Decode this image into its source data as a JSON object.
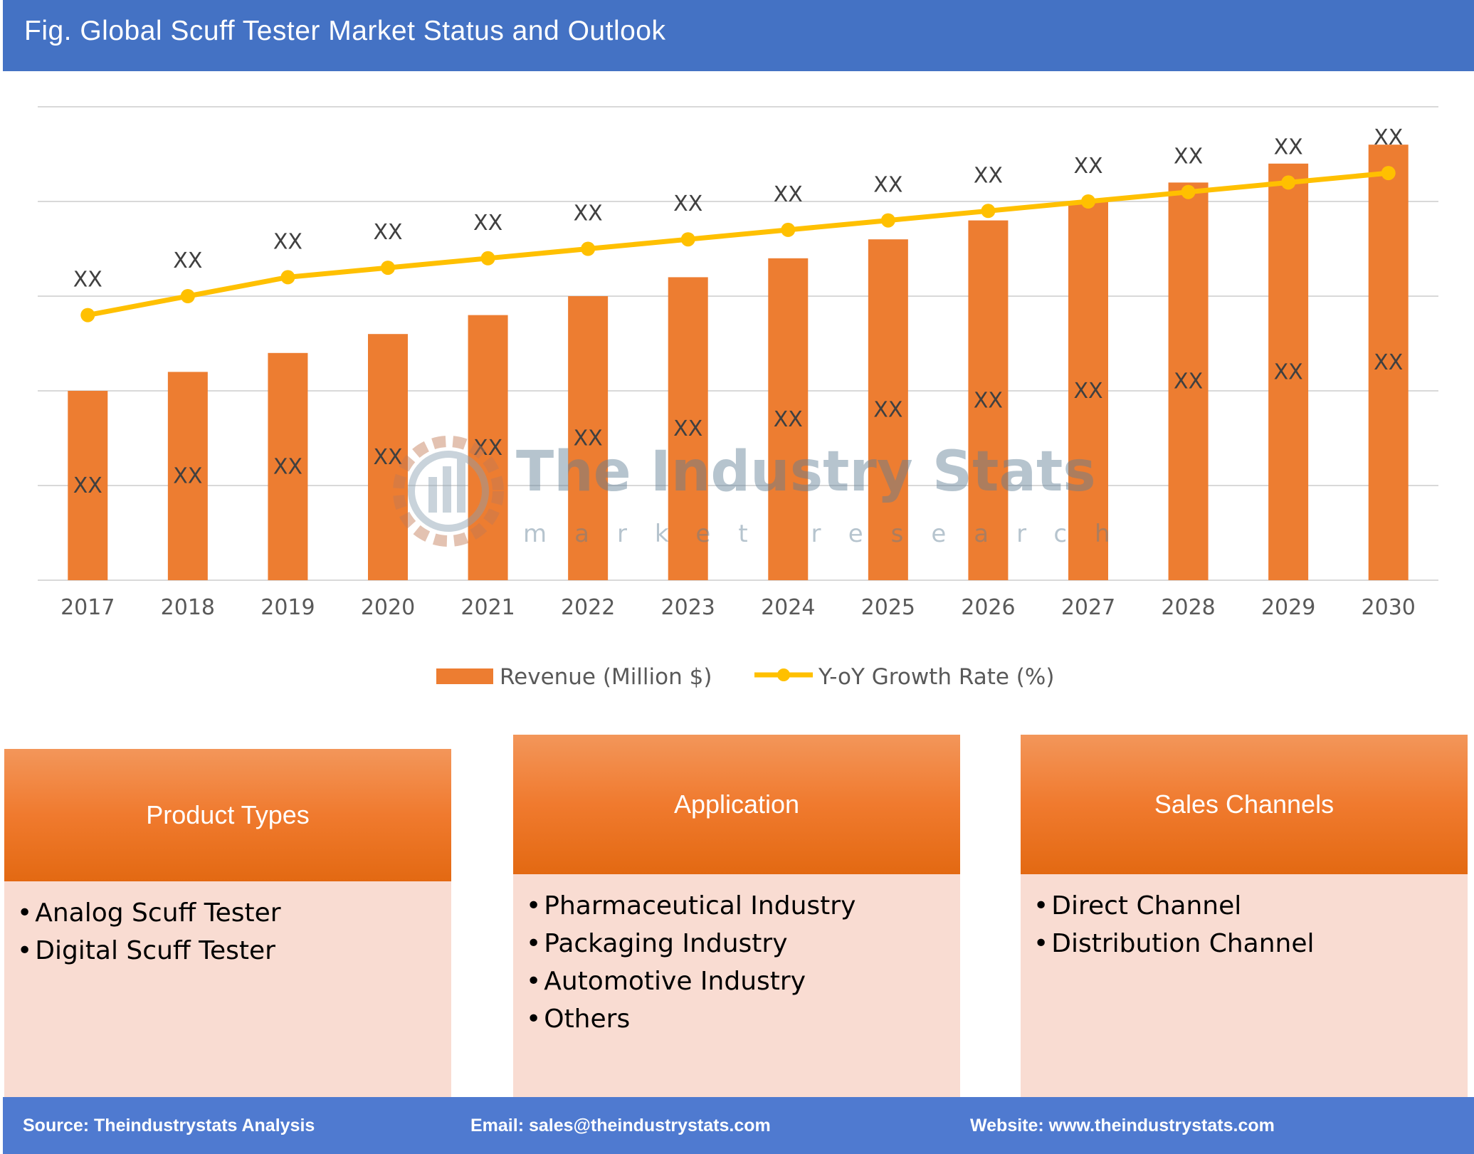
{
  "title": "Fig. Global Scuff Tester Market Status and Outlook",
  "chart_data": {
    "type": "bar",
    "categories": [
      "2017",
      "2018",
      "2019",
      "2020",
      "2021",
      "2022",
      "2023",
      "2024",
      "2025",
      "2026",
      "2027",
      "2028",
      "2029",
      "2030"
    ],
    "series": [
      {
        "name": "Revenue (Million $)",
        "type": "bar",
        "color": "#ed7d31",
        "values": [
          2.0,
          2.2,
          2.4,
          2.6,
          2.8,
          3.0,
          3.2,
          3.4,
          3.6,
          3.8,
          4.0,
          4.2,
          4.4,
          4.6
        ],
        "labels": [
          "XX",
          "XX",
          "XX",
          "XX",
          "XX",
          "XX",
          "XX",
          "XX",
          "XX",
          "XX",
          "XX",
          "XX",
          "XX",
          "XX"
        ]
      },
      {
        "name": "Y-oY Growth Rate (%)",
        "type": "line",
        "color": "#ffc000",
        "values": [
          2.8,
          3.0,
          3.2,
          3.3,
          3.4,
          3.5,
          3.6,
          3.7,
          3.8,
          3.9,
          4.0,
          4.1,
          4.2,
          4.3
        ],
        "labels": [
          "XX",
          "XX",
          "XX",
          "XX",
          "XX",
          "XX",
          "XX",
          "XX",
          "XX",
          "XX",
          "XX",
          "XX",
          "XX",
          "XX"
        ]
      }
    ],
    "ylim": [
      0,
      5
    ],
    "grid": true,
    "legend_position": "bottom"
  },
  "watermark": {
    "title": "The Industry Stats",
    "subtitle": "market research"
  },
  "panels": [
    {
      "title": "Product Types",
      "items": [
        "Analog Scuff Tester",
        "Digital Scuff Tester"
      ]
    },
    {
      "title": "Application",
      "items": [
        "Pharmaceutical Industry",
        "Packaging Industry",
        "Automotive Industry",
        "Others"
      ]
    },
    {
      "title": "Sales Channels",
      "items": [
        "Direct Channel",
        "Distribution Channel"
      ]
    }
  ],
  "footer": {
    "source": "Source: Theindustrystats Analysis",
    "email": "Email: sales@theindustrystats.com",
    "website": "Website: www.theindustrystats.com"
  }
}
